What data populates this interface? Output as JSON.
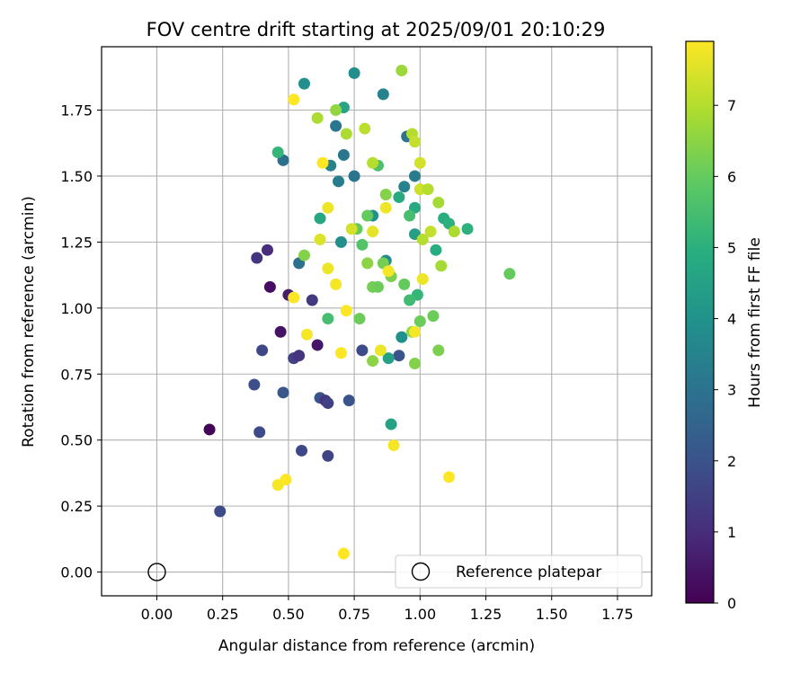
{
  "chart_data": {
    "type": "scatter",
    "title": "FOV centre drift starting at 2025/09/01 20:10:29",
    "xlabel": "Angular distance from reference (arcmin)",
    "ylabel": "Rotation from reference (arcmin)",
    "xlim": [
      -0.21,
      1.88
    ],
    "ylim": [
      -0.09,
      1.99
    ],
    "xticks": [
      0.0,
      0.25,
      0.5,
      0.75,
      1.0,
      1.25,
      1.5,
      1.75
    ],
    "xtick_labels": [
      "0.00",
      "0.25",
      "0.50",
      "0.75",
      "1.00",
      "1.25",
      "1.50",
      "1.75"
    ],
    "yticks": [
      0.0,
      0.25,
      0.5,
      0.75,
      1.0,
      1.25,
      1.5,
      1.75
    ],
    "ytick_labels": [
      "0.00",
      "0.25",
      "0.50",
      "0.75",
      "1.00",
      "1.25",
      "1.50",
      "1.75"
    ],
    "grid": true,
    "colormap": "viridis",
    "colorbar": {
      "label": "Hours from first FF file",
      "min": 0,
      "max": 7.9,
      "ticks": [
        0,
        1,
        2,
        3,
        4,
        5,
        6,
        7
      ],
      "tick_labels": [
        "0",
        "1",
        "2",
        "3",
        "4",
        "5",
        "6",
        "7"
      ]
    },
    "reference": {
      "label": "Reference platepar",
      "x": 0.0,
      "y": 0.0
    },
    "legend_position": "lower-right",
    "points": [
      [
        0.2,
        0.54,
        0.1
      ],
      [
        0.24,
        0.23,
        1.8
      ],
      [
        0.38,
        1.19,
        1.2
      ],
      [
        0.4,
        0.84,
        1.7
      ],
      [
        0.39,
        0.53,
        1.8
      ],
      [
        0.37,
        0.71,
        1.9
      ],
      [
        0.42,
        1.22,
        1.0
      ],
      [
        0.43,
        1.08,
        0.3
      ],
      [
        0.47,
        0.91,
        0.4
      ],
      [
        0.48,
        0.68,
        2.1
      ],
      [
        0.5,
        1.05,
        0.6
      ],
      [
        0.52,
        0.81,
        1.5
      ],
      [
        0.54,
        0.82,
        1.2
      ],
      [
        0.55,
        0.46,
        1.7
      ],
      [
        0.59,
        1.03,
        1.3
      ],
      [
        0.61,
        0.86,
        0.5
      ],
      [
        0.62,
        0.66,
        2.0
      ],
      [
        0.64,
        0.65,
        1.2
      ],
      [
        0.65,
        0.64,
        1.5
      ],
      [
        0.65,
        0.44,
        1.6
      ],
      [
        0.73,
        0.65,
        2.0
      ],
      [
        0.78,
        0.84,
        1.8
      ],
      [
        0.92,
        0.82,
        2.0
      ],
      [
        0.48,
        1.56,
        2.9
      ],
      [
        0.54,
        1.17,
        2.9
      ],
      [
        0.68,
        1.69,
        3.1
      ],
      [
        0.71,
        1.58,
        3.1
      ],
      [
        0.69,
        1.48,
        3.3
      ],
      [
        0.66,
        1.54,
        3.5
      ],
      [
        0.75,
        1.5,
        3.0
      ],
      [
        0.84,
        1.54,
        5.6
      ],
      [
        0.86,
        1.81,
        3.5
      ],
      [
        0.95,
        1.65,
        3.0
      ],
      [
        0.98,
        1.5,
        3.3
      ],
      [
        0.94,
        1.46,
        3.5
      ],
      [
        0.87,
        1.18,
        3.8
      ],
      [
        0.93,
        0.89,
        4.0
      ],
      [
        0.88,
        0.81,
        4.5
      ],
      [
        0.56,
        1.85,
        3.9
      ],
      [
        0.75,
        1.89,
        3.9
      ],
      [
        0.7,
        1.25,
        3.9
      ],
      [
        0.82,
        1.35,
        4.0
      ],
      [
        0.62,
        1.34,
        4.7
      ],
      [
        0.71,
        1.76,
        4.6
      ],
      [
        0.46,
        1.59,
        5.2
      ],
      [
        0.89,
        0.56,
        4.5
      ],
      [
        0.92,
        1.42,
        4.8
      ],
      [
        0.98,
        1.28,
        4.4
      ],
      [
        0.98,
        1.38,
        4.8
      ],
      [
        1.06,
        1.22,
        4.9
      ],
      [
        1.09,
        1.34,
        4.9
      ],
      [
        1.11,
        1.32,
        5.0
      ],
      [
        1.18,
        1.3,
        5.0
      ],
      [
        0.99,
        1.05,
        5.2
      ],
      [
        0.96,
        1.03,
        5.4
      ],
      [
        0.78,
        1.24,
        5.7
      ],
      [
        0.8,
        1.35,
        6.0
      ],
      [
        0.76,
        1.3,
        6.0
      ],
      [
        0.96,
        1.35,
        5.5
      ],
      [
        1.34,
        1.13,
        6.0
      ],
      [
        0.65,
        0.96,
        5.5
      ],
      [
        0.77,
        0.96,
        6.1
      ],
      [
        0.82,
        1.08,
        6.2
      ],
      [
        0.84,
        1.08,
        6.1
      ],
      [
        0.86,
        1.17,
        6.2
      ],
      [
        0.89,
        1.12,
        6.3
      ],
      [
        0.94,
        1.09,
        6.0
      ],
      [
        1.0,
        0.95,
        6.1
      ],
      [
        1.05,
        0.97,
        6.1
      ],
      [
        1.07,
        0.84,
        6.3
      ],
      [
        0.98,
        0.79,
        6.4
      ],
      [
        0.82,
        0.8,
        6.5
      ],
      [
        0.97,
        0.91,
        6.5
      ],
      [
        0.8,
        1.17,
        6.5
      ],
      [
        0.56,
        1.2,
        6.4
      ],
      [
        0.68,
        1.75,
        6.6
      ],
      [
        0.61,
        1.72,
        6.9
      ],
      [
        0.72,
        1.66,
        6.9
      ],
      [
        0.79,
        1.68,
        7.1
      ],
      [
        0.97,
        1.66,
        7.0
      ],
      [
        0.98,
        1.63,
        7.2
      ],
      [
        0.93,
        1.9,
        6.7
      ],
      [
        0.82,
        1.55,
        7.0
      ],
      [
        0.87,
        1.43,
        6.4
      ],
      [
        1.0,
        1.45,
        7.3
      ],
      [
        1.03,
        1.45,
        7.0
      ],
      [
        1.07,
        1.4,
        6.8
      ],
      [
        1.04,
        1.29,
        7.2
      ],
      [
        1.01,
        1.26,
        7.0
      ],
      [
        1.13,
        1.29,
        6.9
      ],
      [
        1.08,
        1.16,
        6.8
      ],
      [
        0.62,
        1.26,
        7.5
      ],
      [
        0.65,
        1.38,
        7.7
      ],
      [
        0.74,
        1.3,
        7.4
      ],
      [
        0.82,
        1.29,
        7.6
      ],
      [
        0.87,
        1.38,
        7.7
      ],
      [
        1.01,
        1.11,
        7.7
      ],
      [
        0.65,
        1.15,
        7.7
      ],
      [
        0.68,
        1.09,
        7.8
      ],
      [
        0.88,
        1.14,
        7.8
      ],
      [
        0.57,
        0.9,
        7.8
      ],
      [
        0.72,
        0.99,
        7.9
      ],
      [
        0.7,
        0.83,
        7.9
      ],
      [
        0.85,
        0.84,
        7.7
      ],
      [
        0.98,
        0.91,
        7.8
      ],
      [
        0.52,
        1.04,
        7.9
      ],
      [
        0.63,
        1.55,
        7.9
      ],
      [
        0.52,
        1.79,
        7.9
      ],
      [
        0.46,
        0.33,
        7.8
      ],
      [
        0.49,
        0.35,
        7.9
      ],
      [
        0.9,
        0.48,
        7.8
      ],
      [
        1.11,
        0.36,
        7.9
      ],
      [
        0.71,
        0.07,
        7.9
      ],
      [
        1.0,
        1.55,
        7.4
      ]
    ]
  }
}
